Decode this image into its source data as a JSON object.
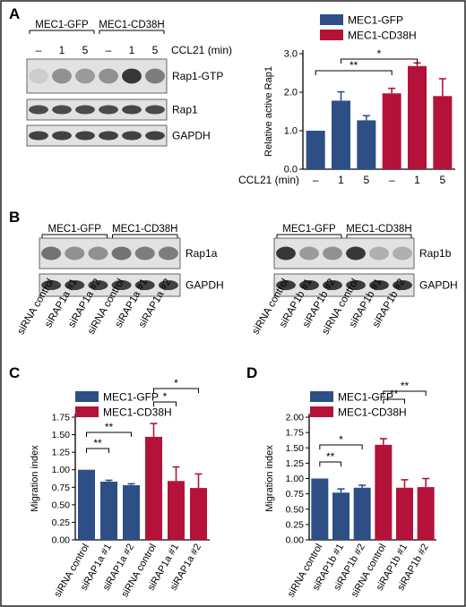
{
  "colors": {
    "gfp": "#2d4f86",
    "cd38h": "#b5123a",
    "frame": "#222222"
  },
  "panel_letters": [
    "A",
    "B",
    "C",
    "D"
  ],
  "chart_data": [
    {
      "id": "A",
      "type": "bar",
      "categories": [
        "–",
        "1",
        "5",
        "–",
        "1",
        "5"
      ],
      "category_colors": [
        "gfp",
        "gfp",
        "gfp",
        "cd38h",
        "cd38h",
        "cd38h"
      ],
      "values": [
        1.0,
        1.78,
        1.27,
        1.97,
        2.68,
        1.9
      ],
      "errors": [
        0,
        0.23,
        0.12,
        0.13,
        0.08,
        0.45
      ],
      "xlabel": "CCL21 (min)",
      "ylabel": "Relative active Rap1",
      "ylim": [
        0,
        3
      ],
      "yticks": [
        "0.0",
        "1.0",
        "2.0",
        "3.0"
      ],
      "legend": [
        "MEC1-GFP",
        "MEC1-CD38H"
      ],
      "brackets": [
        {
          "from": 0,
          "to": 3,
          "label": "**"
        },
        {
          "from": 1,
          "to": 4,
          "label": "*"
        }
      ]
    },
    {
      "id": "C",
      "type": "bar",
      "categories": [
        "siRNA control",
        "siRAP1a #1",
        "siRAP1a #2",
        "siRNA control",
        "siRAP1a #1",
        "siRAP1a #2"
      ],
      "category_colors": [
        "gfp",
        "gfp",
        "gfp",
        "cd38h",
        "cd38h",
        "cd38h"
      ],
      "values": [
        1.0,
        0.83,
        0.78,
        1.47,
        0.84,
        0.74
      ],
      "errors": [
        0,
        0.02,
        0.02,
        0.19,
        0.2,
        0.2
      ],
      "ylabel": "Migration index",
      "ylim": [
        0,
        1.75
      ],
      "yticks": [
        "0.00",
        "0.25",
        "0.50",
        "0.75",
        "1.00",
        "1.25",
        "1.50",
        "1.75"
      ],
      "legend": [
        "MEC1-GFP",
        "MEC1-CD38H"
      ],
      "brackets": [
        {
          "from": 0,
          "to": 1,
          "label": "**"
        },
        {
          "from": 0,
          "to": 2,
          "label": "**"
        },
        {
          "from": 3,
          "to": 4,
          "label": "*"
        },
        {
          "from": 3,
          "to": 5,
          "label": "*"
        }
      ]
    },
    {
      "id": "D",
      "type": "bar",
      "categories": [
        "siRNA control",
        "siRAP1b #1",
        "siRAP1b #2",
        "siRNA control",
        "siRAP1b #1",
        "siRAP1b #2"
      ],
      "category_colors": [
        "gfp",
        "gfp",
        "gfp",
        "cd38h",
        "cd38h",
        "cd38h"
      ],
      "values": [
        1.0,
        0.77,
        0.85,
        1.55,
        0.85,
        0.86
      ],
      "errors": [
        0,
        0.06,
        0.04,
        0.1,
        0.13,
        0.14
      ],
      "ylabel": "Migration index",
      "ylim": [
        0,
        2
      ],
      "yticks": [
        "0.00",
        "0.25",
        "0.50",
        "0.75",
        "1.00",
        "1.25",
        "1.50",
        "1.75",
        "2.00"
      ],
      "legend": [
        "MEC1-GFP",
        "MEC1-CD38H"
      ],
      "brackets": [
        {
          "from": 0,
          "to": 1,
          "label": "**"
        },
        {
          "from": 0,
          "to": 2,
          "label": "*"
        },
        {
          "from": 3,
          "to": 4,
          "label": "**"
        },
        {
          "from": 3,
          "to": 5,
          "label": "**"
        }
      ]
    }
  ],
  "blots": {
    "A": {
      "groups": [
        "MEC1-GFP",
        "MEC1-CD38H"
      ],
      "treatment_label": "CCL21 (min)",
      "lanes": [
        "–",
        "1",
        "5",
        "–",
        "1",
        "5"
      ],
      "rows": [
        {
          "label": "Rap1-GTP",
          "intensity": [
            0.15,
            0.45,
            0.4,
            0.45,
            0.9,
            0.55
          ]
        },
        {
          "label": "Rap1",
          "intensity": [
            0.8,
            0.8,
            0.8,
            0.8,
            0.82,
            0.8
          ]
        },
        {
          "label": "GAPDH",
          "intensity": [
            0.85,
            0.85,
            0.85,
            0.85,
            0.85,
            0.85
          ]
        }
      ]
    },
    "B1": {
      "groups": [
        "MEC1-GFP",
        "MEC1-CD38H"
      ],
      "lanes": [
        "siRNA control",
        "siRAP1a #1",
        "siRAP1a #2",
        "siRNA control",
        "siRAP1a #1",
        "siRAP1a #2"
      ],
      "rows": [
        {
          "label": "Rap1a",
          "intensity": [
            0.6,
            0.45,
            0.45,
            0.6,
            0.55,
            0.55
          ]
        },
        {
          "label": "GAPDH",
          "intensity": [
            0.85,
            0.85,
            0.85,
            0.85,
            0.85,
            0.85
          ]
        }
      ]
    },
    "B2": {
      "groups": [
        "MEC1-GFP",
        "MEC1-CD38H"
      ],
      "lanes": [
        "siRNA control",
        "siRAP1b #1",
        "siRAP1b #2",
        "siRNA control",
        "siRAP1b #1",
        "siRAP1b #2"
      ],
      "rows": [
        {
          "label": "Rap1b",
          "intensity": [
            0.9,
            0.4,
            0.45,
            0.9,
            0.3,
            0.3
          ]
        },
        {
          "label": "GAPDH",
          "intensity": [
            0.88,
            0.88,
            0.88,
            0.88,
            0.88,
            0.88
          ]
        }
      ]
    }
  }
}
